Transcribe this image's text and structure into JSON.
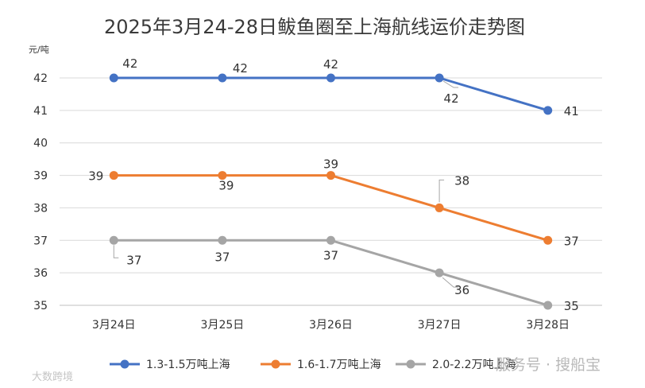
{
  "chart_data": {
    "type": "line",
    "title": "2025年3月24-28日鲅鱼圈至上海航线运价走势图",
    "ylabel": "元/吨",
    "xlabel": "",
    "categories": [
      "3月24日",
      "3月25日",
      "3月26日",
      "3月27日",
      "3月28日"
    ],
    "ylim": [
      35,
      42
    ],
    "yticks": [
      35,
      36,
      37,
      38,
      39,
      40,
      41,
      42
    ],
    "grid": true,
    "legend_position": "bottom",
    "series": [
      {
        "name": "1.3-1.5万吨上海",
        "color": "#4472c4",
        "values": [
          42,
          42,
          42,
          42,
          41
        ]
      },
      {
        "name": "1.6-1.7万吨上海",
        "color": "#ed7d31",
        "values": [
          39,
          39,
          39,
          38,
          37
        ]
      },
      {
        "name": "2.0-2.2万吨上海",
        "color": "#a5a5a5",
        "values": [
          37,
          37,
          37,
          36,
          35
        ]
      }
    ]
  },
  "watermarks": {
    "right": "服务号 · 搜船宝",
    "left": "大数跨境"
  }
}
